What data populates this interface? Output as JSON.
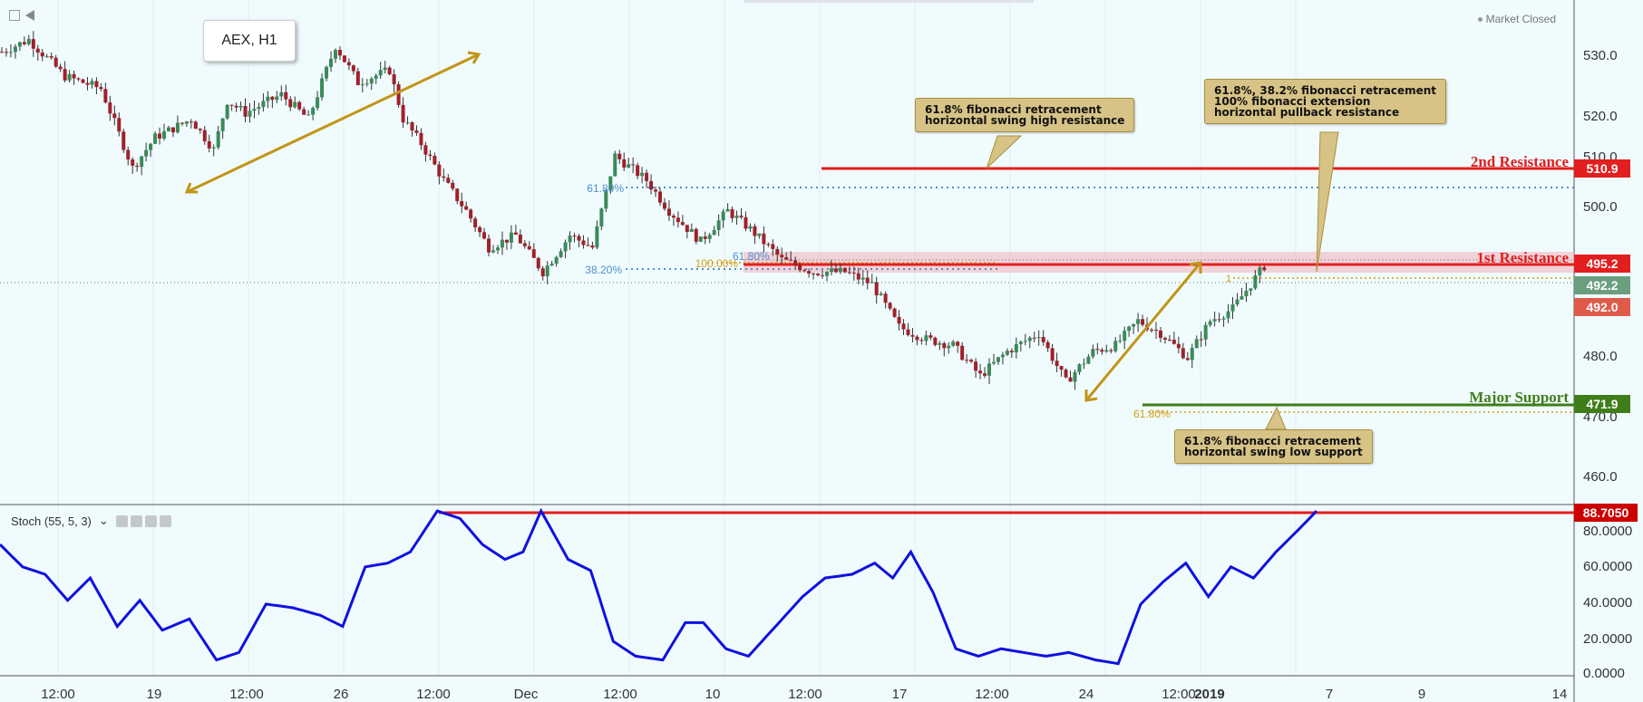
{
  "symbol_label": "AEX, H1",
  "status_text": "Market Closed",
  "indicator": {
    "label": "Stoch (55, 5, 3)",
    "dropdown": "⌄",
    "tool_icons": [
      "eye-icon",
      "settings-icon",
      "add-icon",
      "close-icon"
    ]
  },
  "price_axis": {
    "ticks": [
      "530.0",
      "520.0",
      "510.0",
      "500.0",
      "480.0",
      "470.0",
      "460.0"
    ]
  },
  "stoch_axis": {
    "ticks": [
      "80.0000",
      "60.0000",
      "40.0000",
      "20.0000",
      "0.0000"
    ]
  },
  "time_axis": {
    "labels": [
      "12:00",
      "19",
      "12:00",
      "26",
      "12:00",
      "Dec",
      "12:00",
      "10",
      "12:00",
      "17",
      "12:00",
      "24",
      "12:00",
      "2019",
      "7",
      "9",
      "14"
    ]
  },
  "price_tags": [
    {
      "text": "510.9",
      "color": "#e31e1e"
    },
    {
      "text": "495.2",
      "color": "#e31e1e"
    },
    {
      "text": "492.2",
      "color": "#6b9e7f"
    },
    {
      "text": "492.0",
      "color": "#e05a4a"
    },
    {
      "text": "471.9",
      "color": "#3f7d1b"
    },
    {
      "text": "88.7050",
      "color": "#cc0000"
    }
  ],
  "levels": {
    "second_resistance": {
      "label": "2nd Resistance",
      "value": 510.9
    },
    "first_resistance": {
      "label": "1st Resistance",
      "value": 495.2
    },
    "major_support": {
      "label": "Major Support",
      "value": 471.9
    }
  },
  "fib_labels": {
    "fib_618_upper": "61.80%",
    "fib_382": "38.20%",
    "fib_100": "100.00%",
    "fib_618_mid": "61.80%",
    "fib_618_low": "61.80%",
    "fib_one": "1"
  },
  "annotations": {
    "high": "61.8% fibonacci retracement\nhorizontal swing high resistance",
    "pullback": "61.8%, 38.2% fibonacci retracement\n100% fibonacci extension\nhorizontal pullback resistance",
    "low": "61.8% fibonacci retracement\nhorizontal swing low support"
  },
  "colors": {
    "resistance": "#e31e1e",
    "support": "#3f7d1b",
    "fib_blue": "#4f8fce",
    "fib_gold": "#d4a017",
    "arrow": "#c29518",
    "candle_up": "#3b8a5a",
    "candle_down": "#a0202a",
    "stoch_line": "#1010e0",
    "annotation_bg": "#d7c386"
  },
  "chart_data": {
    "type": "candlestick",
    "price_range": [
      455,
      535
    ],
    "stoch_range": [
      0,
      90
    ],
    "price_path": [
      [
        0,
        528
      ],
      [
        12,
        530
      ],
      [
        28,
        524
      ],
      [
        44,
        522
      ],
      [
        58,
        509
      ],
      [
        68,
        514
      ],
      [
        84,
        517
      ],
      [
        94,
        512
      ],
      [
        100,
        520
      ],
      [
        108,
        518
      ],
      [
        124,
        521
      ],
      [
        136,
        517
      ],
      [
        148,
        529
      ],
      [
        158,
        523
      ],
      [
        172,
        525
      ],
      [
        178,
        517
      ],
      [
        186,
        513
      ],
      [
        196,
        507
      ],
      [
        206,
        502
      ],
      [
        216,
        496
      ],
      [
        228,
        498
      ],
      [
        240,
        492
      ],
      [
        252,
        498
      ],
      [
        262,
        496
      ],
      [
        272,
        511
      ],
      [
        286,
        507
      ],
      [
        296,
        502
      ],
      [
        310,
        497
      ],
      [
        322,
        502
      ],
      [
        332,
        499
      ],
      [
        346,
        494
      ],
      [
        360,
        492
      ],
      [
        374,
        492
      ],
      [
        386,
        490
      ],
      [
        398,
        483
      ],
      [
        410,
        481
      ],
      [
        422,
        480
      ],
      [
        434,
        475
      ],
      [
        446,
        479
      ],
      [
        460,
        482
      ],
      [
        472,
        474
      ],
      [
        484,
        479
      ],
      [
        494,
        480
      ],
      [
        504,
        484
      ],
      [
        514,
        482
      ],
      [
        526,
        478
      ],
      [
        536,
        484
      ],
      [
        546,
        486
      ],
      [
        560,
        493
      ]
    ],
    "stoch_path": [
      [
        0,
        70
      ],
      [
        10,
        58
      ],
      [
        20,
        54
      ],
      [
        30,
        40
      ],
      [
        40,
        52
      ],
      [
        52,
        26
      ],
      [
        62,
        40
      ],
      [
        72,
        24
      ],
      [
        84,
        30
      ],
      [
        96,
        8
      ],
      [
        106,
        12
      ],
      [
        118,
        38
      ],
      [
        130,
        36
      ],
      [
        142,
        32
      ],
      [
        152,
        26
      ],
      [
        162,
        58
      ],
      [
        172,
        60
      ],
      [
        182,
        66
      ],
      [
        194,
        88
      ],
      [
        204,
        84
      ],
      [
        214,
        70
      ],
      [
        224,
        62
      ],
      [
        232,
        66
      ],
      [
        240,
        88
      ],
      [
        252,
        62
      ],
      [
        262,
        56
      ],
      [
        272,
        18
      ],
      [
        282,
        10
      ],
      [
        294,
        8
      ],
      [
        304,
        28
      ],
      [
        312,
        28
      ],
      [
        322,
        14
      ],
      [
        332,
        10
      ],
      [
        344,
        26
      ],
      [
        356,
        42
      ],
      [
        366,
        52
      ],
      [
        378,
        54
      ],
      [
        388,
        60
      ],
      [
        396,
        52
      ],
      [
        404,
        66
      ],
      [
        414,
        44
      ],
      [
        424,
        14
      ],
      [
        434,
        10
      ],
      [
        444,
        14
      ],
      [
        454,
        12
      ],
      [
        464,
        10
      ],
      [
        474,
        12
      ],
      [
        486,
        8
      ],
      [
        496,
        6
      ],
      [
        506,
        38
      ],
      [
        516,
        50
      ],
      [
        526,
        60
      ],
      [
        536,
        42
      ],
      [
        546,
        58
      ],
      [
        556,
        52
      ],
      [
        566,
        66
      ],
      [
        576,
        78
      ],
      [
        584,
        88
      ]
    ]
  }
}
